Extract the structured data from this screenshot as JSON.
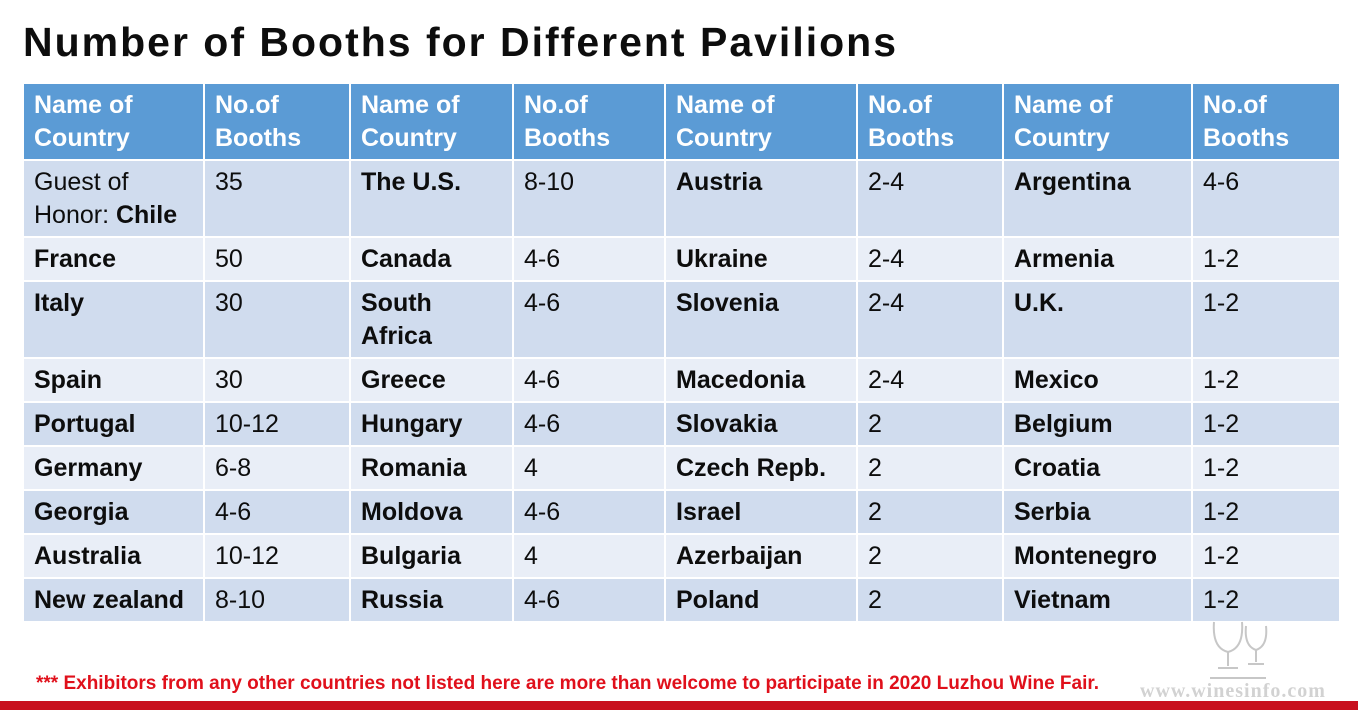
{
  "title": "Number of Booths for Different Pavilions",
  "table": {
    "headers": [
      "Name of Country",
      "No.of Booths",
      "Name of Country",
      "No.of Booths",
      "Name of Country",
      "No.of Booths",
      "Name of Country",
      "No.of Booths"
    ],
    "rows": [
      [
        {
          "country_prefix": "Guest of Honor: ",
          "country": "Chile",
          "booths": "35"
        },
        {
          "country": "The U.S.",
          "booths": "8-10"
        },
        {
          "country": "Austria",
          "booths": "2-4"
        },
        {
          "country": "Argentina",
          "booths": "4-6"
        }
      ],
      [
        {
          "country": "France",
          "booths": "50"
        },
        {
          "country": "Canada",
          "booths": "4-6"
        },
        {
          "country": "Ukraine",
          "booths": "2-4"
        },
        {
          "country": "Armenia",
          "booths": "1-2"
        }
      ],
      [
        {
          "country": "Italy",
          "booths": "30"
        },
        {
          "country": "South Africa",
          "booths": "4-6"
        },
        {
          "country": "Slovenia",
          "booths": "2-4"
        },
        {
          "country": "U.K.",
          "booths": "1-2"
        }
      ],
      [
        {
          "country": "Spain",
          "booths": "30"
        },
        {
          "country": "Greece",
          "booths": "4-6"
        },
        {
          "country": "Macedonia",
          "booths": "2-4"
        },
        {
          "country": "Mexico",
          "booths": "1-2"
        }
      ],
      [
        {
          "country": "Portugal",
          "booths": "10-12"
        },
        {
          "country": "Hungary",
          "booths": "4-6"
        },
        {
          "country": "Slovakia",
          "booths": "2"
        },
        {
          "country": "Belgium",
          "booths": "1-2"
        }
      ],
      [
        {
          "country": "Germany",
          "booths": "6-8"
        },
        {
          "country": "Romania",
          "booths": "4"
        },
        {
          "country": "Czech Repb.",
          "booths": "2"
        },
        {
          "country": "Croatia",
          "booths": "1-2"
        }
      ],
      [
        {
          "country": "Georgia",
          "booths": "4-6"
        },
        {
          "country": "Moldova",
          "booths": "4-6"
        },
        {
          "country": "Israel",
          "booths": "2"
        },
        {
          "country": "Serbia",
          "booths": "1-2"
        }
      ],
      [
        {
          "country": "Australia",
          "booths": "10-12"
        },
        {
          "country": "Bulgaria",
          "booths": "4"
        },
        {
          "country": "Azerbaijan",
          "booths": "2"
        },
        {
          "country": "Montenegro",
          "booths": "1-2"
        }
      ],
      [
        {
          "country": "New zealand",
          "booths": "8-10"
        },
        {
          "country": "Russia",
          "booths": "4-6"
        },
        {
          "country": "Poland",
          "booths": "2"
        },
        {
          "country": "Vietnam",
          "booths": "1-2"
        }
      ]
    ]
  },
  "footnote": "*** Exhibitors from any other countries not listed here are more than welcome to participate in 2020 Luzhou Wine Fair.",
  "watermark": {
    "text": "www.winesinfo.com",
    "icon": "wine-glass-logo-icon"
  },
  "colors": {
    "header_bg": "#5b9bd5",
    "row_odd_bg": "#d0dcee",
    "row_even_bg": "#e9eef7",
    "footnote": "#e0101b",
    "bottom_rule": "#c8101e"
  }
}
